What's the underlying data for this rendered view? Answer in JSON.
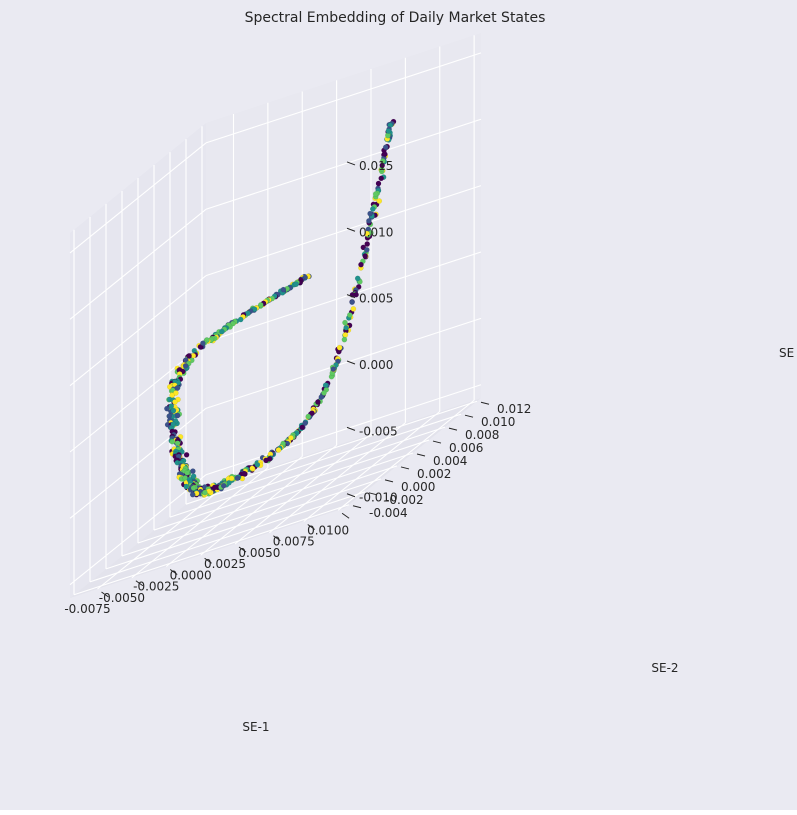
{
  "chart_data": {
    "type": "scatter",
    "projection": "3d",
    "title": "Spectral Embedding of Daily Market States",
    "xlabel": "SE-1",
    "ylabel": "SE-2",
    "zlabel": "SE",
    "xlim": [
      -0.0095,
      0.0105
    ],
    "ylim": [
      -0.0045,
      0.0125
    ],
    "zlim": [
      -0.011,
      0.0165
    ],
    "x_ticks": [
      "-0.0075",
      "-0.0050",
      "-0.0025",
      "0.0000",
      "0.0025",
      "0.0050",
      "0.0075",
      "0.0100"
    ],
    "y_ticks": [
      "-0.004",
      "-0.002",
      "0.000",
      "0.002",
      "0.004",
      "0.006",
      "0.008",
      "0.010",
      "0.012"
    ],
    "z_ticks": [
      "-0.010",
      "-0.005",
      "0.000",
      "0.005",
      "0.010",
      "0.015"
    ],
    "grid": true,
    "colormap": "viridis",
    "colormap_colors": [
      "#440154",
      "#3b528b",
      "#21918c",
      "#5ec962",
      "#fde725"
    ],
    "legend": "none",
    "background": "#eaeaf2",
    "point_count": 700,
    "curve_path_points": [
      {
        "label": "upper-left start of arc",
        "x": -0.0015,
        "y": 0.0115,
        "z": 0.0028
      },
      {
        "label": "left bend",
        "x": -0.0075,
        "y": 0.0062,
        "z": 0.0005
      },
      {
        "label": "bottom of arc",
        "x": -0.0035,
        "y": -0.0005,
        "z": -0.0055
      },
      {
        "label": "lowest region",
        "x": 0.0005,
        "y": -0.0025,
        "z": -0.0068
      },
      {
        "label": "rising branch",
        "x": 0.0062,
        "y": 0.0005,
        "z": -0.003
      },
      {
        "label": "upper-right tip",
        "x": 0.0098,
        "y": 0.0025,
        "z": 0.0148
      }
    ]
  }
}
